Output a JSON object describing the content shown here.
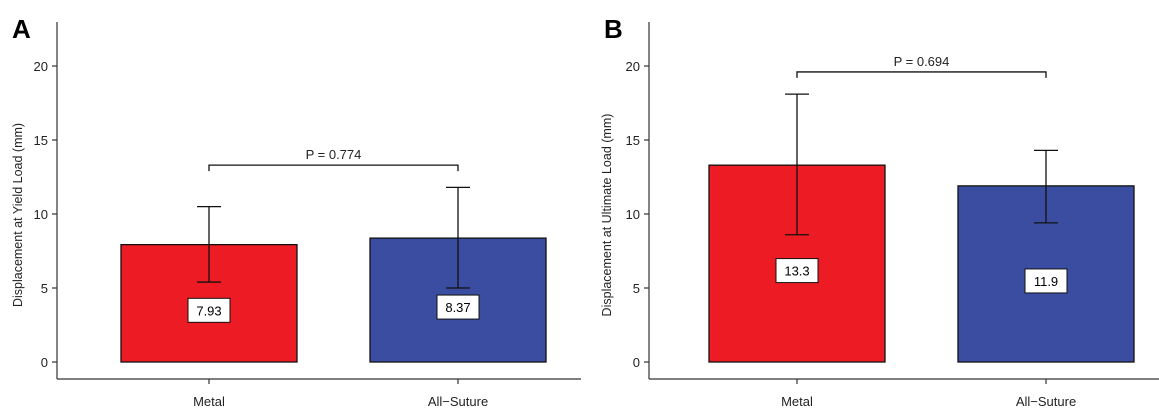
{
  "chart_data": [
    {
      "panel": "A",
      "type": "bar",
      "ylabel": "Displacement at Yield Load (mm)",
      "ylim": [
        0,
        21.5
      ],
      "yticks": [
        0,
        5,
        10,
        15,
        20
      ],
      "categories": [
        "Metal",
        "All−Suture"
      ],
      "values": [
        7.93,
        8.37
      ],
      "labels": [
        "7.93",
        "8.37"
      ],
      "error_low": [
        5.4,
        5.0
      ],
      "error_high": [
        10.5,
        11.8
      ],
      "colors": [
        "#ED1C24",
        "#3A4DA0"
      ],
      "significance": {
        "text": "P = 0.774",
        "y": 13.3
      }
    },
    {
      "panel": "B",
      "type": "bar",
      "ylabel": "Displacement at Ultimate Load (mm)",
      "ylim": [
        0,
        21.5
      ],
      "yticks": [
        0,
        5,
        10,
        15,
        20
      ],
      "categories": [
        "Metal",
        "All−Suture"
      ],
      "values": [
        13.3,
        11.9
      ],
      "labels": [
        "13.3",
        "11.9"
      ],
      "error_low": [
        8.6,
        9.4
      ],
      "error_high": [
        18.1,
        14.3
      ],
      "colors": [
        "#ED1C24",
        "#3A4DA0"
      ],
      "significance": {
        "text": "P = 0.694",
        "y": 19.6
      }
    }
  ]
}
